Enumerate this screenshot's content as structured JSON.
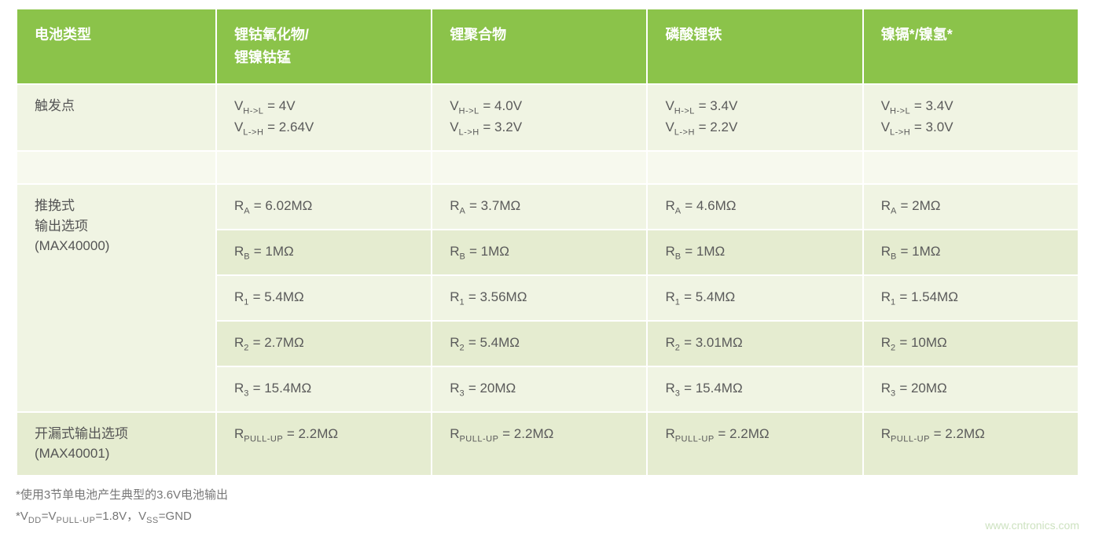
{
  "table": {
    "header_bg": "#8bc34a",
    "header_fg": "#ffffff",
    "row_bg_light": "#f0f4e3",
    "row_bg_alt": "#e5ecd0",
    "spacer_bg": "#f7f9ee",
    "text_color": "#5a5a5a",
    "columns": [
      "电池类型",
      "锂钴氧化物/\n锂镍钴锰",
      "锂聚合物",
      "磷酸锂铁",
      "镍镉*/镍氢*"
    ],
    "rows": [
      {
        "label": "触发点",
        "cells": [
          [
            {
              "var": "V",
              "sub": "H->L",
              "eq": " = 4V"
            },
            {
              "var": "V",
              "sub": "L->H",
              "eq": " = 2.64V"
            }
          ],
          [
            {
              "var": "V",
              "sub": "H->L",
              "eq": " = 4.0V"
            },
            {
              "var": "V",
              "sub": "L->H",
              "eq": " = 3.2V"
            }
          ],
          [
            {
              "var": "V",
              "sub": "H->L",
              "eq": " = 3.4V"
            },
            {
              "var": "V",
              "sub": "L->H",
              "eq": " = 2.2V"
            }
          ],
          [
            {
              "var": "V",
              "sub": "H->L",
              "eq": " = 3.4V"
            },
            {
              "var": "V",
              "sub": "L->H",
              "eq": " = 3.0V"
            }
          ]
        ]
      },
      {
        "spacer": true
      },
      {
        "label": "推挽式\n输出选项\n(MAX40000)",
        "rowspan": 5,
        "cells": [
          [
            {
              "var": "R",
              "sub": "A",
              "eq": " = 6.02MΩ"
            }
          ],
          [
            {
              "var": "R",
              "sub": "A",
              "eq": " = 3.7MΩ"
            }
          ],
          [
            {
              "var": "R",
              "sub": "A",
              "eq": " = 4.6MΩ"
            }
          ],
          [
            {
              "var": "R",
              "sub": "A",
              "eq": " = 2MΩ"
            }
          ]
        ]
      },
      {
        "alt": true,
        "cells": [
          [
            {
              "var": "R",
              "sub": "B",
              "eq": " = 1MΩ"
            }
          ],
          [
            {
              "var": "R",
              "sub": "B",
              "eq": " = 1MΩ"
            }
          ],
          [
            {
              "var": "R",
              "sub": "B",
              "eq": " = 1MΩ"
            }
          ],
          [
            {
              "var": "R",
              "sub": "B",
              "eq": " = 1MΩ"
            }
          ]
        ]
      },
      {
        "cells": [
          [
            {
              "var": "R",
              "sub": "1",
              "eq": " = 5.4MΩ"
            }
          ],
          [
            {
              "var": "R",
              "sub": "1",
              "eq": " = 3.56MΩ"
            }
          ],
          [
            {
              "var": "R",
              "sub": "1",
              "eq": " = 5.4MΩ"
            }
          ],
          [
            {
              "var": "R",
              "sub": "1",
              "eq": " = 1.54MΩ"
            }
          ]
        ]
      },
      {
        "alt": true,
        "cells": [
          [
            {
              "var": "R",
              "sub": "2",
              "eq": " = 2.7MΩ"
            }
          ],
          [
            {
              "var": "R",
              "sub": "2",
              "eq": " = 5.4MΩ"
            }
          ],
          [
            {
              "var": "R",
              "sub": "2",
              "eq": " = 3.01MΩ"
            }
          ],
          [
            {
              "var": "R",
              "sub": "2",
              "eq": " = 10MΩ"
            }
          ]
        ]
      },
      {
        "cells": [
          [
            {
              "var": "R",
              "sub": "3",
              "eq": " = 15.4MΩ"
            }
          ],
          [
            {
              "var": "R",
              "sub": "3",
              "eq": " = 20MΩ"
            }
          ],
          [
            {
              "var": "R",
              "sub": "3",
              "eq": " = 15.4MΩ"
            }
          ],
          [
            {
              "var": "R",
              "sub": "3",
              "eq": " = 20MΩ"
            }
          ]
        ]
      },
      {
        "label": "开漏式输出选项\n(MAX40001)",
        "alt": true,
        "cells": [
          [
            {
              "var": "R",
              "sub": "PULL-UP",
              "eq": ""
            },
            {
              "plain": " = 2.2MΩ"
            }
          ],
          [
            {
              "var": "R",
              "sub": "PULL-UP",
              "eq": ""
            },
            {
              "plain": " = 2.2MΩ"
            }
          ],
          [
            {
              "var": "R",
              "sub": "PULL-UP",
              "eq": ""
            },
            {
              "plain": " = 2.2MΩ"
            }
          ],
          [
            {
              "var": "R",
              "sub": "PULL-UP",
              "eq": ""
            },
            {
              "plain": " = 2.2MΩ"
            }
          ]
        ]
      }
    ]
  },
  "footnotes": {
    "line1": "*使用3节单电池产生典型的3.6V电池输出",
    "line2_parts": [
      {
        "plain": "*V"
      },
      {
        "sub": "DD"
      },
      {
        "plain": "=V"
      },
      {
        "sub": "PULL-UP"
      },
      {
        "plain": "=1.8V，V"
      },
      {
        "sub": "SS"
      },
      {
        "plain": "=GND"
      }
    ]
  },
  "watermark": "www.cntronics.com"
}
